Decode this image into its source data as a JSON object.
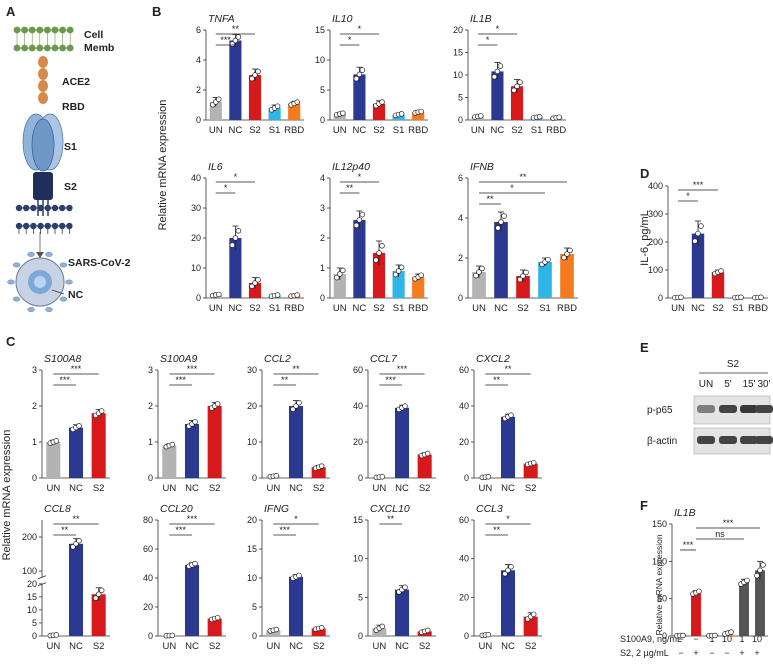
{
  "panels": {
    "A": "A",
    "B": "B",
    "C": "C",
    "D": "D",
    "E": "E",
    "F": "F"
  },
  "colors": {
    "UN": "#b3b3b3",
    "NC": "#2b3990",
    "S2": "#d7191c",
    "S1": "#2fb5e8",
    "RBD": "#f47b20",
    "dark": "#555555",
    "axis": "#333333"
  },
  "schematic": {
    "labels": [
      "Cell",
      "Memb",
      "ACE2",
      "RBD",
      "S1",
      "S2",
      "SARS-CoV-2",
      "NC"
    ],
    "icons": [
      "cell-membrane-icon",
      "ace2-receptor-icon",
      "spike-s1-icon",
      "spike-s2-icon",
      "virion-icon"
    ]
  },
  "panel_b": {
    "ylabel": "Relative mRNA expression"
  },
  "panel_c": {
    "ylabel": "Relative mRNA expression"
  },
  "panel_d": {
    "ylabel": "IL-6, pg/mL"
  },
  "western": {
    "header": "S2",
    "lanes": [
      "UN",
      "5'",
      "15'",
      "30'"
    ],
    "rows": [
      "p-p65",
      "β-actin"
    ],
    "p65_intensity": [
      0.55,
      0.8,
      0.85,
      0.8
    ],
    "actin_intensity": [
      0.8,
      0.8,
      0.8,
      0.8
    ]
  },
  "panel_f": {
    "ylabel": "Relative mRNA expression",
    "row_labels": [
      "S100A9, ng/mL",
      "S2, 2 µg/mL"
    ],
    "row1": [
      "−",
      "−",
      "1",
      "10",
      "1",
      "10"
    ],
    "row2": [
      "−",
      "+",
      "−",
      "−",
      "+",
      "+"
    ]
  },
  "chart_data": [
    {
      "id": "b_tnfa",
      "type": "bar",
      "title": "TNFA",
      "categories": [
        "UN",
        "NC",
        "S2",
        "S1",
        "RBD"
      ],
      "values": [
        1.2,
        5.3,
        3.0,
        0.8,
        1.1
      ],
      "errors": [
        0.3,
        0.4,
        0.4,
        0.2,
        0.15
      ],
      "ylim": [
        0,
        6
      ],
      "yticks": [
        0,
        2,
        4,
        6
      ],
      "sig": [
        {
          "from": 0,
          "to": 1,
          "label": "***"
        },
        {
          "from": 0,
          "to": 2,
          "label": "**"
        }
      ]
    },
    {
      "id": "b_il10",
      "type": "bar",
      "title": "IL10",
      "categories": [
        "UN",
        "NC",
        "S2",
        "S1",
        "RBD"
      ],
      "values": [
        1.0,
        7.6,
        2.7,
        0.9,
        1.3
      ],
      "errors": [
        0.2,
        1.2,
        0.5,
        0.2,
        0.2
      ],
      "ylim": [
        0,
        15
      ],
      "yticks": [
        0,
        5,
        10,
        15
      ],
      "sig": [
        {
          "from": 0,
          "to": 1,
          "label": "*"
        },
        {
          "from": 0,
          "to": 2,
          "label": "*"
        }
      ]
    },
    {
      "id": "b_il1b",
      "type": "bar",
      "title": "IL1B",
      "categories": [
        "UN",
        "NC",
        "S2",
        "S1",
        "RBD"
      ],
      "values": [
        0.8,
        10.8,
        7.5,
        0.6,
        0.5
      ],
      "errors": [
        0.2,
        2.0,
        1.5,
        0.2,
        0.2
      ],
      "ylim": [
        0,
        20
      ],
      "yticks": [
        0,
        5,
        10,
        15,
        20
      ],
      "sig": [
        {
          "from": 0,
          "to": 1,
          "label": "*"
        },
        {
          "from": 0,
          "to": 2,
          "label": "*"
        }
      ]
    },
    {
      "id": "b_il6",
      "type": "bar",
      "title": "IL6",
      "categories": [
        "UN",
        "NC",
        "S2",
        "S1",
        "RBD"
      ],
      "values": [
        1.0,
        20.0,
        5.0,
        0.8,
        0.8
      ],
      "errors": [
        0.3,
        4.0,
        1.8,
        0.3,
        0.3
      ],
      "ylim": [
        0,
        40
      ],
      "yticks": [
        0,
        10,
        20,
        30,
        40
      ],
      "sig": [
        {
          "from": 0,
          "to": 1,
          "label": "*"
        },
        {
          "from": 0,
          "to": 2,
          "label": "*"
        }
      ]
    },
    {
      "id": "b_il12p40",
      "type": "bar",
      "title": "IL12p40",
      "categories": [
        "UN",
        "NC",
        "S2",
        "S1",
        "RBD"
      ],
      "values": [
        0.8,
        2.6,
        1.5,
        0.9,
        0.7
      ],
      "errors": [
        0.2,
        0.3,
        0.4,
        0.2,
        0.1
      ],
      "ylim": [
        0,
        4
      ],
      "yticks": [
        0,
        1,
        2,
        3,
        4
      ],
      "sig": [
        {
          "from": 0,
          "to": 1,
          "label": "**"
        },
        {
          "from": 0,
          "to": 2,
          "label": "*"
        }
      ]
    },
    {
      "id": "b_ifnb",
      "type": "bar",
      "title": "IFNB",
      "categories": [
        "UN",
        "NC",
        "S2",
        "S1",
        "RBD"
      ],
      "values": [
        1.3,
        3.8,
        1.1,
        1.8,
        2.2
      ],
      "errors": [
        0.3,
        0.5,
        0.3,
        0.2,
        0.3
      ],
      "ylim": [
        0,
        6
      ],
      "yticks": [
        0,
        2,
        4,
        6
      ],
      "sig": [
        {
          "from": 0,
          "to": 1,
          "label": "**"
        },
        {
          "from": 0,
          "to": 3,
          "label": "*"
        },
        {
          "from": 0,
          "to": 4,
          "label": "**"
        }
      ]
    },
    {
      "id": "d_il6",
      "type": "bar",
      "title": "",
      "categories": [
        "UN",
        "NC",
        "S2",
        "S1",
        "RBD"
      ],
      "values": [
        2,
        230,
        92,
        2,
        2
      ],
      "errors": [
        1,
        45,
        8,
        1,
        1
      ],
      "ylim": [
        0,
        400
      ],
      "yticks": [
        0,
        100,
        200,
        300,
        400
      ],
      "sig": [
        {
          "from": 0,
          "to": 1,
          "label": "*"
        },
        {
          "from": 0,
          "to": 2,
          "label": "***"
        }
      ]
    },
    {
      "id": "c_s100a8",
      "type": "bar",
      "title": "S100A8",
      "categories": [
        "UN",
        "NC",
        "S2"
      ],
      "values": [
        1.0,
        1.4,
        1.8
      ],
      "errors": [
        0.05,
        0.08,
        0.1
      ],
      "ylim": [
        0,
        3
      ],
      "yticks": [
        0,
        1,
        2,
        3
      ],
      "sig": [
        {
          "from": 0,
          "to": 1,
          "label": "***"
        },
        {
          "from": 0,
          "to": 2,
          "label": "***"
        }
      ]
    },
    {
      "id": "c_s100a9",
      "type": "bar",
      "title": "S100A9",
      "categories": [
        "UN",
        "NC",
        "S2"
      ],
      "values": [
        0.9,
        1.5,
        2.0
      ],
      "errors": [
        0.05,
        0.1,
        0.1
      ],
      "ylim": [
        0,
        3
      ],
      "yticks": [
        0,
        1,
        2,
        3
      ],
      "sig": [
        {
          "from": 0,
          "to": 1,
          "label": "***"
        },
        {
          "from": 0,
          "to": 2,
          "label": "***"
        }
      ]
    },
    {
      "id": "c_ccl2",
      "type": "bar",
      "title": "CCL2",
      "categories": [
        "UN",
        "NC",
        "S2"
      ],
      "values": [
        0.5,
        20.0,
        3.0
      ],
      "errors": [
        0.2,
        1.5,
        0.5
      ],
      "ylim": [
        0,
        30
      ],
      "yticks": [
        0,
        10,
        20,
        30
      ],
      "sig": [
        {
          "from": 0,
          "to": 1,
          "label": "**"
        },
        {
          "from": 0,
          "to": 2,
          "label": "**"
        }
      ]
    },
    {
      "id": "c_ccl7",
      "type": "bar",
      "title": "CCL7",
      "categories": [
        "UN",
        "NC",
        "S2"
      ],
      "values": [
        0.5,
        39.0,
        13.0
      ],
      "errors": [
        0.3,
        1.5,
        1.0
      ],
      "ylim": [
        0,
        60
      ],
      "yticks": [
        0,
        20,
        40,
        60
      ],
      "sig": [
        {
          "from": 0,
          "to": 1,
          "label": "***"
        },
        {
          "from": 0,
          "to": 2,
          "label": "***"
        }
      ]
    },
    {
      "id": "c_cxcl2",
      "type": "bar",
      "title": "CXCL2",
      "categories": [
        "UN",
        "NC",
        "S2"
      ],
      "values": [
        0.5,
        34.0,
        8.0
      ],
      "errors": [
        0.3,
        1.5,
        0.8
      ],
      "ylim": [
        0,
        60
      ],
      "yticks": [
        0,
        20,
        40,
        60
      ],
      "sig": [
        {
          "from": 0,
          "to": 1,
          "label": "**"
        },
        {
          "from": 0,
          "to": 2,
          "label": "**"
        }
      ]
    },
    {
      "id": "c_ccl8",
      "type": "bar",
      "title": "CCL8",
      "categories": [
        "UN",
        "NC",
        "S2"
      ],
      "values": [
        0.3,
        180.0,
        16.0
      ],
      "errors": [
        0.2,
        15,
        2.5
      ],
      "ylim": [
        0,
        250
      ],
      "yticks": [
        0,
        5,
        10,
        15,
        20,
        100,
        200
      ],
      "broken": {
        "lower": [
          0,
          20
        ],
        "upper": [
          80,
          250
        ]
      },
      "sig": [
        {
          "from": 0,
          "to": 1,
          "label": "**"
        },
        {
          "from": 0,
          "to": 2,
          "label": "**"
        }
      ]
    },
    {
      "id": "c_ccl20",
      "type": "bar",
      "title": "CCL20",
      "categories": [
        "UN",
        "NC",
        "S2"
      ],
      "values": [
        0.3,
        49.0,
        12.0
      ],
      "errors": [
        0.2,
        1.5,
        1.0
      ],
      "ylim": [
        0,
        80
      ],
      "yticks": [
        0,
        20,
        40,
        60,
        80
      ],
      "sig": [
        {
          "from": 0,
          "to": 1,
          "label": "***"
        },
        {
          "from": 0,
          "to": 2,
          "label": "***"
        }
      ]
    },
    {
      "id": "c_ifng",
      "type": "bar",
      "title": "IFNG",
      "categories": [
        "UN",
        "NC",
        "S2"
      ],
      "values": [
        1.0,
        10.2,
        1.3
      ],
      "errors": [
        0.2,
        0.4,
        0.2
      ],
      "ylim": [
        0,
        20
      ],
      "yticks": [
        0,
        5,
        10,
        15,
        20
      ],
      "sig": [
        {
          "from": 0,
          "to": 1,
          "label": "***"
        },
        {
          "from": 0,
          "to": 2,
          "label": "*"
        }
      ]
    },
    {
      "id": "c_cxcl10",
      "type": "bar",
      "title": "CXCL10",
      "categories": [
        "UN",
        "NC",
        "S2"
      ],
      "values": [
        1.0,
        6.0,
        0.6
      ],
      "errors": [
        0.4,
        0.5,
        0.2
      ],
      "ylim": [
        0,
        15
      ],
      "yticks": [
        0,
        5,
        10,
        15
      ],
      "sig": [
        {
          "from": 0,
          "to": 1,
          "label": "**"
        }
      ]
    },
    {
      "id": "c_ccl3",
      "type": "bar",
      "title": "CCL3",
      "categories": [
        "UN",
        "NC",
        "S2"
      ],
      "values": [
        0.5,
        34.0,
        10.0
      ],
      "errors": [
        0.3,
        3.0,
        2.0
      ],
      "ylim": [
        0,
        60
      ],
      "yticks": [
        0,
        20,
        40,
        60
      ],
      "sig": [
        {
          "from": 0,
          "to": 1,
          "label": "**"
        },
        {
          "from": 0,
          "to": 2,
          "label": "*"
        }
      ]
    },
    {
      "id": "f_il1b",
      "type": "bar",
      "title": "IL1B",
      "categories": [
        "1",
        "2",
        "3",
        "4",
        "5",
        "6"
      ],
      "values": [
        0.5,
        58,
        0.5,
        4.0,
        72,
        88
      ],
      "errors": [
        0.3,
        3,
        0.3,
        2,
        4,
        12
      ],
      "colors": [
        "#b3b3b3",
        "#d7191c",
        "#b3b3b3",
        "#f47b20",
        "#555555",
        "#555555"
      ],
      "ylim": [
        0,
        150
      ],
      "yticks": [
        0,
        50,
        100,
        150
      ],
      "sig": [
        {
          "from": 0,
          "to": 1,
          "label": "***"
        },
        {
          "from": 1,
          "to": 4,
          "label": "ns"
        },
        {
          "from": 1,
          "to": 5,
          "label": "***"
        }
      ]
    }
  ]
}
